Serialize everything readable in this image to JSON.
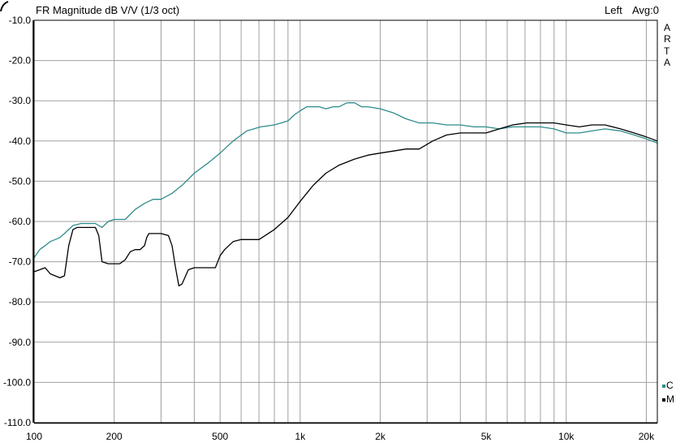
{
  "header": {
    "title": "FR Magnitude dB V/V (1/3 oct)",
    "channel": "Left",
    "averaging": "Avg:0"
  },
  "brand_letters": [
    "A",
    "R",
    "T",
    "A"
  ],
  "colors": {
    "background": "#ffffff",
    "grid": "#a0a0a0",
    "axis": "#000000",
    "series_c": "#2e8b8b",
    "series_m": "#000000"
  },
  "chart_data": {
    "type": "line",
    "title": "FR Magnitude dB V/V (1/3 oct)",
    "xlabel": "",
    "ylabel": "",
    "x_scale": "log",
    "xlim": [
      100,
      22000
    ],
    "ylim": [
      -110,
      -10
    ],
    "grid": true,
    "legend_position": "right",
    "x_ticks": [
      {
        "value": 100,
        "label": "100"
      },
      {
        "value": 200,
        "label": "200"
      },
      {
        "value": 500,
        "label": "500"
      },
      {
        "value": 1000,
        "label": "1k"
      },
      {
        "value": 2000,
        "label": "2k"
      },
      {
        "value": 5000,
        "label": "5k"
      },
      {
        "value": 10000,
        "label": "10k"
      },
      {
        "value": 20000,
        "label": "20k"
      }
    ],
    "y_ticks": [
      {
        "value": -10,
        "label": "-10.0"
      },
      {
        "value": -20,
        "label": "-20.0"
      },
      {
        "value": -30,
        "label": "-30.0"
      },
      {
        "value": -40,
        "label": "-40.0"
      },
      {
        "value": -50,
        "label": "-50.0"
      },
      {
        "value": -60,
        "label": "-60.0"
      },
      {
        "value": -70,
        "label": "-70.0"
      },
      {
        "value": -80,
        "label": "-80.0"
      },
      {
        "value": -90,
        "label": "-90.0"
      },
      {
        "value": -100,
        "label": "-100.0"
      },
      {
        "value": -110,
        "label": "-110.0"
      }
    ],
    "series": [
      {
        "name": "C",
        "color": "#2e8b8b",
        "x": [
          100,
          105,
          110,
          115,
          120,
          125,
          130,
          140,
          150,
          160,
          170,
          180,
          190,
          200,
          220,
          240,
          260,
          280,
          300,
          330,
          360,
          400,
          450,
          500,
          560,
          630,
          710,
          800,
          850,
          900,
          950,
          1000,
          1060,
          1120,
          1180,
          1250,
          1330,
          1400,
          1500,
          1600,
          1700,
          1800,
          2000,
          2240,
          2500,
          2800,
          3150,
          3550,
          4000,
          4500,
          5000,
          5600,
          6300,
          7100,
          8000,
          9000,
          10000,
          11200,
          12500,
          14000,
          16000,
          18000,
          20000,
          22000
        ],
        "y": [
          -69,
          -67,
          -66,
          -65,
          -64.5,
          -64,
          -63,
          -61,
          -60.5,
          -60.5,
          -60.5,
          -61.5,
          -60,
          -59.5,
          -59.5,
          -57,
          -55.5,
          -54.5,
          -54.5,
          -53,
          -51,
          -48,
          -45.5,
          -43,
          -40,
          -37.5,
          -36.5,
          -36,
          -35.5,
          -35,
          -33.5,
          -32.5,
          -31.5,
          -31.5,
          -31.5,
          -32,
          -31.5,
          -31.5,
          -30.5,
          -30.5,
          -31.5,
          -31.5,
          -32,
          -33,
          -34.5,
          -35.5,
          -35.5,
          -36,
          -36,
          -36.5,
          -36.5,
          -37,
          -36.5,
          -36.5,
          -36.5,
          -37,
          -38,
          -38,
          -37.5,
          -37,
          -37.5,
          -38.5,
          -39.5,
          -40.5
        ]
      },
      {
        "name": "M",
        "color": "#000000",
        "x": [
          100,
          105,
          110,
          115,
          120,
          125,
          130,
          135,
          140,
          145,
          150,
          160,
          170,
          175,
          180,
          190,
          200,
          210,
          220,
          230,
          240,
          250,
          260,
          265,
          270,
          280,
          300,
          320,
          330,
          340,
          350,
          360,
          380,
          400,
          450,
          480,
          500,
          520,
          560,
          600,
          630,
          700,
          800,
          900,
          1000,
          1120,
          1250,
          1400,
          1600,
          1800,
          2000,
          2240,
          2500,
          2800,
          3150,
          3550,
          4000,
          4500,
          5000,
          5600,
          6300,
          7100,
          8000,
          9000,
          10000,
          11200,
          12500,
          14000,
          16000,
          18000,
          20000,
          22000
        ],
        "y": [
          -72.5,
          -72,
          -71.5,
          -73,
          -73.5,
          -74,
          -73.5,
          -66,
          -62,
          -61.5,
          -61.5,
          -61.5,
          -61.5,
          -63.5,
          -70,
          -70.5,
          -70.5,
          -70.5,
          -69.5,
          -67.5,
          -67,
          -67,
          -66,
          -64,
          -63,
          -63,
          -63,
          -63.5,
          -66,
          -71.5,
          -76,
          -75.5,
          -72,
          -71.5,
          -71.5,
          -71.5,
          -68.5,
          -67,
          -65,
          -64.5,
          -64.5,
          -64.5,
          -62,
          -59,
          -55,
          -51,
          -48,
          -46,
          -44.5,
          -43.5,
          -43,
          -42.5,
          -42,
          -42,
          -40,
          -38.5,
          -38,
          -38,
          -38,
          -37,
          -36,
          -35.5,
          -35.5,
          -35.5,
          -36,
          -36.5,
          -36,
          -36,
          -37,
          -38,
          -39,
          -40
        ]
      }
    ]
  }
}
